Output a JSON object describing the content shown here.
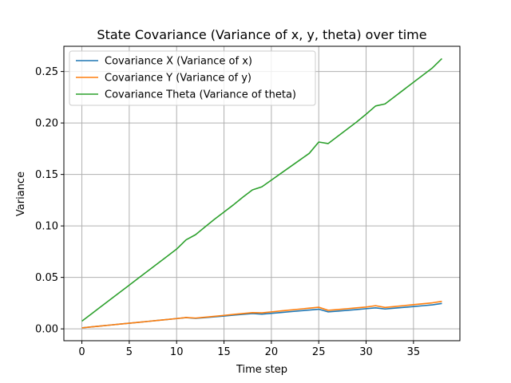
{
  "chart_data": {
    "type": "line",
    "title": "State Covariance (Variance of x, y, theta) over time",
    "xlabel": "Time step",
    "ylabel": "Variance",
    "xlim": [
      -1.9,
      39.9
    ],
    "ylim": [
      -0.0115,
      0.2745
    ],
    "xticks": [
      0,
      5,
      10,
      15,
      20,
      25,
      30,
      35
    ],
    "xtick_labels": [
      "0",
      "5",
      "10",
      "15",
      "20",
      "25",
      "30",
      "35"
    ],
    "yticks": [
      0.0,
      0.05,
      0.1,
      0.15,
      0.2,
      0.25
    ],
    "ytick_labels": [
      "0.00",
      "0.05",
      "0.10",
      "0.15",
      "0.20",
      "0.25"
    ],
    "grid": true,
    "legend_position": "upper-left",
    "x": [
      0,
      1,
      2,
      3,
      4,
      5,
      6,
      7,
      8,
      9,
      10,
      11,
      12,
      13,
      14,
      15,
      16,
      17,
      18,
      19,
      20,
      21,
      22,
      23,
      24,
      25,
      26,
      27,
      28,
      29,
      30,
      31,
      32,
      33,
      34,
      35,
      36,
      37,
      38
    ],
    "series": [
      {
        "name": "Covariance X (Variance of x)",
        "color": "#1f77b4",
        "values": [
          0.001,
          0.0019,
          0.0028,
          0.0037,
          0.0046,
          0.0055,
          0.0064,
          0.0073,
          0.0082,
          0.0091,
          0.01,
          0.0109,
          0.0102,
          0.0109,
          0.0117,
          0.0125,
          0.0133,
          0.0141,
          0.0149,
          0.0143,
          0.0151,
          0.0159,
          0.0167,
          0.0175,
          0.0183,
          0.0191,
          0.0165,
          0.0172,
          0.018,
          0.0188,
          0.0196,
          0.0204,
          0.0193,
          0.0201,
          0.0209,
          0.0217,
          0.0225,
          0.0233,
          0.0247
        ]
      },
      {
        "name": "Covariance Y (Variance of y)",
        "color": "#ff7f0e",
        "values": [
          0.001,
          0.0019,
          0.0028,
          0.0037,
          0.0046,
          0.0055,
          0.0064,
          0.0073,
          0.0082,
          0.0091,
          0.01,
          0.011,
          0.0105,
          0.0113,
          0.0122,
          0.0131,
          0.014,
          0.0149,
          0.0158,
          0.0156,
          0.0165,
          0.0174,
          0.0183,
          0.0192,
          0.0201,
          0.021,
          0.018,
          0.0188,
          0.0196,
          0.0204,
          0.0212,
          0.0225,
          0.0208,
          0.0217,
          0.0226,
          0.0235,
          0.0244,
          0.0253,
          0.0267
        ]
      },
      {
        "name": "Covariance Theta (Variance of theta)",
        "color": "#2ca02c",
        "values": [
          0.0075,
          0.0145,
          0.0215,
          0.0285,
          0.0355,
          0.0425,
          0.0495,
          0.0565,
          0.0635,
          0.0705,
          0.0775,
          0.0865,
          0.0915,
          0.099,
          0.1065,
          0.1135,
          0.1205,
          0.128,
          0.135,
          0.138,
          0.1445,
          0.151,
          0.1575,
          0.164,
          0.1705,
          0.1815,
          0.18,
          0.187,
          0.194,
          0.201,
          0.2085,
          0.2165,
          0.2185,
          0.2255,
          0.2325,
          0.2395,
          0.2465,
          0.2535,
          0.2625
        ]
      }
    ]
  }
}
